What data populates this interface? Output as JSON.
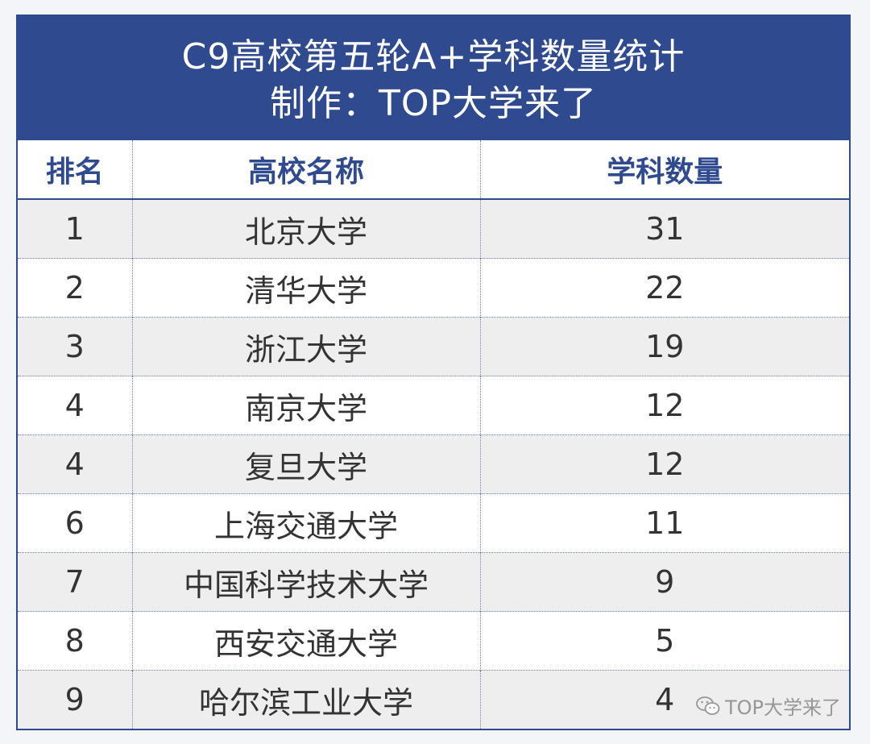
{
  "title": {
    "line1": "C9高校第五轮A+学科数量统计",
    "line2": "制作：TOP大学来了"
  },
  "table": {
    "headers": [
      "排名",
      "高校名称",
      "学科数量"
    ],
    "rows": [
      [
        "1",
        "北京大学",
        "31"
      ],
      [
        "2",
        "清华大学",
        "22"
      ],
      [
        "3",
        "浙江大学",
        "19"
      ],
      [
        "4",
        "南京大学",
        "12"
      ],
      [
        "4",
        "复旦大学",
        "12"
      ],
      [
        "6",
        "上海交通大学",
        "11"
      ],
      [
        "7",
        "中国科学技术大学",
        "9"
      ],
      [
        "8",
        "西安交通大学",
        "5"
      ],
      [
        "9",
        "哈尔滨工业大学",
        "4"
      ]
    ]
  },
  "watermark": {
    "icon": "wechat-icon",
    "text": "TOP大学来了"
  },
  "colors": {
    "accent": "#2f4a8f",
    "row_alt": "#eeeeee",
    "background": "#f3f5f8"
  }
}
